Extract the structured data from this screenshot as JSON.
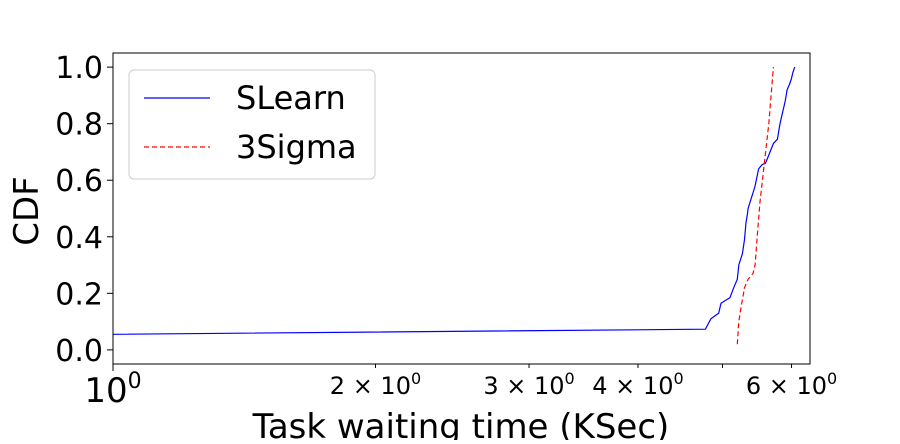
{
  "chart_data": {
    "type": "line",
    "xscale": "log",
    "xlabel": "Task waiting time (KSec)",
    "ylabel": "CDF",
    "xlim": [
      1.0,
      6.3
    ],
    "ylim": [
      -0.05,
      1.05
    ],
    "x_ticks": [
      {
        "value": 1,
        "base": "10",
        "exp": "0",
        "major": true
      },
      {
        "value": 2,
        "base": "2 × 10",
        "exp": "0",
        "major": false
      },
      {
        "value": 3,
        "base": "3 × 10",
        "exp": "0",
        "major": false
      },
      {
        "value": 4,
        "base": "4 × 10",
        "exp": "0",
        "major": false
      },
      {
        "value": 6,
        "base": "6 × 10",
        "exp": "0",
        "major": false
      }
    ],
    "y_ticks": [
      0.0,
      0.2,
      0.4,
      0.6,
      0.8,
      1.0
    ],
    "y_tick_labels": [
      "0.0",
      "0.2",
      "0.4",
      "0.6",
      "0.8",
      "1.0"
    ],
    "grid": false,
    "legend_position": "top-left",
    "series": [
      {
        "name": "SLearn",
        "color": "#0000ff",
        "style": "solid",
        "x": [
          1.0,
          4.78,
          4.85,
          4.95,
          4.98,
          5.1,
          5.15,
          5.2,
          5.22,
          5.27,
          5.3,
          5.32,
          5.34,
          5.35,
          5.4,
          5.42,
          5.45,
          5.5,
          5.55,
          5.6,
          5.62,
          5.72,
          5.78,
          5.82,
          5.86,
          5.9,
          5.93,
          5.97,
          6.0,
          6.02,
          6.05
        ],
        "y": [
          0.055,
          0.073,
          0.11,
          0.13,
          0.165,
          0.185,
          0.22,
          0.25,
          0.3,
          0.34,
          0.39,
          0.45,
          0.48,
          0.5,
          0.54,
          0.555,
          0.58,
          0.64,
          0.655,
          0.66,
          0.67,
          0.73,
          0.745,
          0.8,
          0.84,
          0.88,
          0.92,
          0.94,
          0.96,
          0.98,
          1.0
        ]
      },
      {
        "name": "3Sigma",
        "color": "#ff0000",
        "style": "dashed",
        "x": [
          5.2,
          5.22,
          5.25,
          5.3,
          5.35,
          5.42,
          5.45,
          5.48,
          5.52,
          5.58,
          5.65,
          5.72
        ],
        "y": [
          0.02,
          0.1,
          0.15,
          0.22,
          0.25,
          0.27,
          0.3,
          0.4,
          0.52,
          0.65,
          0.8,
          1.0
        ]
      }
    ]
  }
}
